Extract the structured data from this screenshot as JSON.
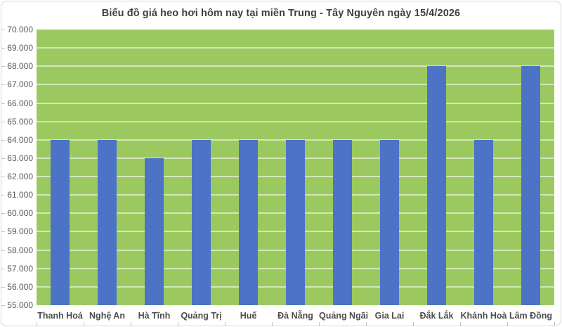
{
  "title": "Biểu đồ giá heo hơi hôm nay tại miền Trung - Tây Nguyên ngày 15/4/2026",
  "chart_data": {
    "type": "bar",
    "categories": [
      "Thanh Hoá",
      "Nghệ An",
      "Hà Tĩnh",
      "Quảng Trị",
      "Huế",
      "Đà Nẵng",
      "Quảng Ngãi",
      "Gia Lai",
      "Đắk Lắk",
      "Khánh Hoà",
      "Lâm Đồng"
    ],
    "values": [
      64000,
      64000,
      63000,
      64000,
      64000,
      64000,
      64000,
      64000,
      68000,
      64000,
      68000
    ],
    "title": "Biểu đồ giá heo hơi hôm nay tại miền Trung - Tây Nguyên ngày 15/4/2026",
    "xlabel": "",
    "ylabel": "",
    "ylim": [
      55000,
      70000
    ],
    "ytick_step": 1000,
    "ytick_labels": [
      "55.000",
      "56.000",
      "57.000",
      "58.000",
      "59.000",
      "60.000",
      "61.000",
      "62.000",
      "63.000",
      "64.000",
      "65.000",
      "66.000",
      "67.000",
      "68.000",
      "69.000",
      "70.000"
    ],
    "grid": "horizontal",
    "legend": "none",
    "colors": {
      "bar": "#4c73c5",
      "plot_background": "#9cc95f",
      "gridline": "rgba(255,255,255,0.55)",
      "frame_border": "#d5d5d5",
      "tick": "#c3c3c3",
      "title_text": "#3f3f3f",
      "y_label_text": "#595959",
      "x_label_text": "#4d4d4d"
    }
  }
}
